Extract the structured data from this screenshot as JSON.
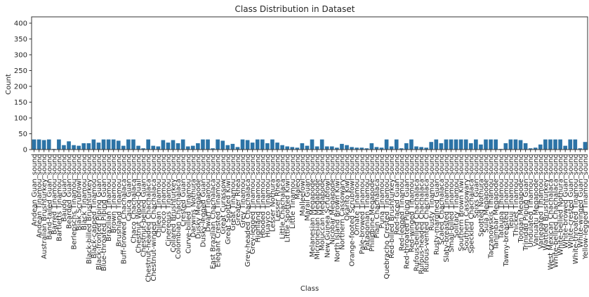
{
  "chart_data": {
    "type": "bar",
    "title": "Class Distribution in Dataset",
    "xlabel": "Class",
    "ylabel": "Count",
    "ylim": [
      0,
      420
    ],
    "yticks": [
      0,
      50,
      100,
      150,
      200,
      250,
      300,
      350,
      400
    ],
    "grid": false,
    "bar_color": "#2c73a6",
    "categories": [
      "Andean Guan_sound",
      "Andean Tinamou_sound",
      "Australian Brushturkey_sound",
      "Band-tailed Guan_sound",
      "Barred Tinamou_sound",
      "Bartletts Tinamou_sound",
      "Baudo Guan_sound",
      "Bearded Guan_sound",
      "Berlepschs Tinamou_sound",
      "Biak Scrubfowl_sound",
      "Black Tinamou_sound",
      "Black-billed Brushturkey_sound",
      "Black-capped Tinamou_sound",
      "Black-fronted Piping Guan_sound",
      "Blue-throated Piping Guan_sound",
      "Brazilian Tinamou_sound",
      "Brown Tinamou_sound",
      "Brushland Tinamou_sound",
      "Buff-browed Chachalaca_sound",
      "Cauca Guan_sound",
      "Chaco Chachalaca_sound",
      "Chestnut Wood-Quail_sound",
      "Chestnut-bellied Guan_sound",
      "Chestnut-headed Chachalaca_sound",
      "Chestnut-winged Chachalaca_sound",
      "Chilean Tinamou_sound",
      "Choco Tinamou_sound",
      "Cinereous Tinamou_sound",
      "Collared Brushturkey_sound",
      "Colombian Chachalaca_sound",
      "Crested Guan_sound",
      "Curve-billed Tinamou_sound",
      "Darwins Nothura_sound",
      "Dusky Megapode_sound",
      "Dusky-legged Guan_sound",
      "Dwarf Tinamou_sound",
      "East Brazilian Chachalaca_sound",
      "Elegant Crested Tinamou_sound",
      "Great Curassow_sound",
      "Great Spotted Kiwi_sound",
      "Great Tinamou_sound",
      "Greater Rhea_sound",
      "Grey Tinamou_sound",
      "Grey-headed Chachalaca_sound",
      "Grey-legged Tinamou_sound",
      "Highland Tinamou_sound",
      "Hooded Tinamou_sound",
      "Huayco Tinamou_sound",
      "Lesser Nothura_sound",
      "Lesser Rhea_sound",
      "Little Chachalaca_sound",
      "Little Spotted Kiwi_sound",
      "Little Tinamou_sound",
      "Maleo_sound",
      "Malleefowl_sound",
      "Marail Guan_sound",
      "Melanesian Megapode_sound",
      "Micronesian Megapode_sound",
      "Moluccan Megapode_sound",
      "New Guinea Scrubfowl_sound",
      "Nicobar Megapode_sound",
      "North Island Brown Kiwi_sound",
      "Northern Cassowary_sound",
      "Okarito Kiwi_sound",
      "Orange-footed Scrubfowl_sound",
      "Ornate Tinamou_sound",
      "Pale-browed Tinamou_sound",
      "Patagonian Tinamou_sound",
      "Philippine Megapode_sound",
      "Plain Chachalaca_sound",
      "Puna Tinamou_sound",
      "Quebracho Crested Tinamou_sound",
      "Red-billed Brushturkey_sound",
      "Red-faced Guan_sound",
      "Red-legged Tinamou_sound",
      "Red-throated Piping Guan_sound",
      "Red-winged Tinamou_sound",
      "Rufous-bellied Chachalaca_sound",
      "Rufous-headed Chachalaca_sound",
      "Rufous-vented Chachalaca_sound",
      "Rusty Tinamou_sound",
      "Rusty-margined Guan_sound",
      "Scaled Chachalaca_sound",
      "Slaty-breasted Tinamou_sound",
      "Small-billed Tinamou_sound",
      "Solitary Tinamou_sound",
      "Southern Brown Kiwi_sound",
      "Southern Cassowary_sound",
      "Speckled Chachalaca_sound",
      "Spixs Guan_sound",
      "Spotted Nothura_sound",
      "Sula Megapode_sound",
      "Taczanowskis Tinamou_sound",
      "Tanimbar Megapode_sound",
      "Tataupa Tinamou_sound",
      "Tawny-breasted Tinamou_sound",
      "Tepui Tinamou_sound",
      "Thicket Tinamou_sound",
      "Tongan Megapode_sound",
      "Trinidad Piping Guan_sound",
      "Undulated Tinamou_sound",
      "Vanuatu Megapode_sound",
      "Variegated Tinamou_sound",
      "Wattled Brushturkey_sound",
      "West Mexican Chachalaca_sound",
      "White-bellied Chachalaca_sound",
      "White-bellied Nothura_sound",
      "White-browed Guan_sound",
      "White-crested Guan_sound",
      "White-throated Tinamou_sound",
      "White-winged Guan_sound",
      "Yellow-legged Tinamou_sound"
    ],
    "values": [
      32,
      32,
      30,
      32,
      2,
      32,
      14,
      26,
      14,
      12,
      20,
      20,
      32,
      22,
      32,
      32,
      32,
      28,
      12,
      32,
      32,
      12,
      4,
      32,
      12,
      10,
      30,
      22,
      30,
      20,
      32,
      10,
      12,
      20,
      32,
      32,
      4,
      32,
      28,
      14,
      18,
      8,
      32,
      30,
      22,
      32,
      32,
      20,
      32,
      22,
      14,
      10,
      8,
      6,
      20,
      12,
      32,
      10,
      32,
      10,
      10,
      6,
      18,
      14,
      8,
      6,
      6,
      4,
      20,
      8,
      6,
      32,
      10,
      32,
      4,
      20,
      32,
      10,
      8,
      6,
      24,
      32,
      20,
      32,
      32,
      32,
      32,
      32,
      20,
      32,
      16,
      32,
      32,
      32,
      2,
      20,
      32,
      32,
      30,
      20,
      4,
      6,
      16,
      32,
      32,
      32,
      32,
      12,
      32,
      32,
      4,
      24
    ]
  }
}
